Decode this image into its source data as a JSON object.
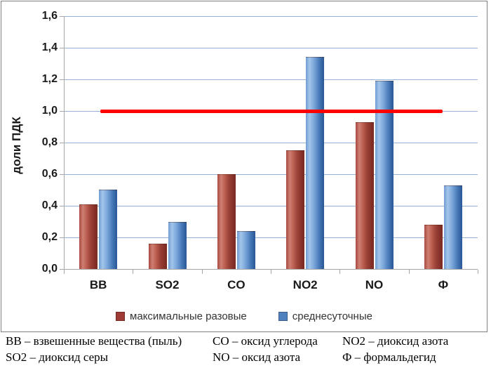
{
  "chart_data": {
    "type": "bar",
    "title": "",
    "categories": [
      "ВВ",
      "SO2",
      "CO",
      "NO2",
      "NO",
      "Ф"
    ],
    "series": [
      {
        "name": "максимальные разовые",
        "color": "#9e3b36",
        "values": [
          0.41,
          0.16,
          0.6,
          0.75,
          0.93,
          0.28
        ]
      },
      {
        "name": "среднесуточные",
        "color": "#4e81bd",
        "values": [
          0.5,
          0.3,
          0.24,
          1.34,
          1.19,
          0.53
        ]
      }
    ],
    "xlabel": "",
    "ylabel": "доли ПДК",
    "ylim": [
      0,
      1.6
    ],
    "ytick_values": [
      0,
      0.2,
      0.4,
      0.6,
      0.8,
      1.0,
      1.2,
      1.4,
      1.6
    ],
    "ytick_labels": [
      "0,0",
      "0,2",
      "0,4",
      "0,6",
      "0,8",
      "1,0",
      "1,2",
      "1,4",
      "1,6"
    ],
    "grid": true,
    "gridline_color": "#95b3d7",
    "axis_color": "#a6a6a6",
    "legend_position": "bottom",
    "reference_line": {
      "value": 1.0,
      "color": "#ff0000"
    }
  },
  "footnotes": {
    "col1": {
      "line1": "ВВ – взвешенные вещества (пыль)",
      "line2": "SO2 – диоксид серы"
    },
    "col2": {
      "line1": "CO – оксид углерода",
      "line2": "NO – оксид азота"
    },
    "col3": {
      "line1": "NO2 – диоксид азота",
      "line2": "Ф – формальдегид"
    }
  }
}
